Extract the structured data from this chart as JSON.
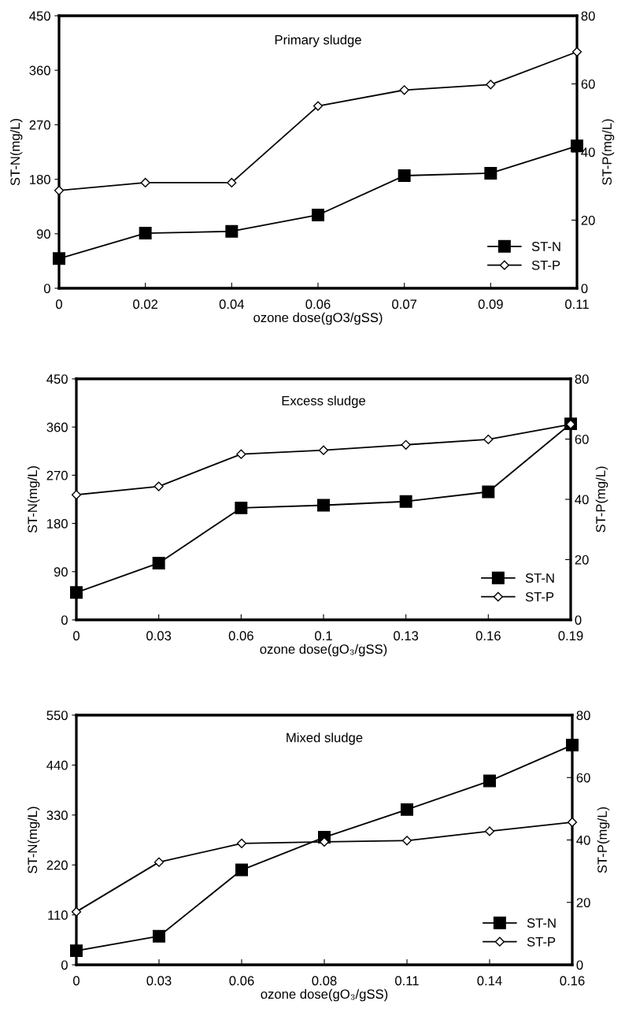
{
  "chart_data": [
    {
      "type": "line",
      "title": "Primary sludge",
      "xlabel": "ozone dose(gO3/gSS)",
      "ylabel": "ST-N(mg/L)",
      "y2label": "ST-P(mg/L)",
      "categories": [
        "0",
        "0.02",
        "0.04",
        "0.06",
        "0.07",
        "0.09",
        "0.11"
      ],
      "series": [
        {
          "name": "ST-N",
          "color": "#000000",
          "marker": "square",
          "values": [
            49,
            91,
            94,
            121,
            186,
            190,
            235
          ]
        },
        {
          "name": "ST-P",
          "color": "#000000",
          "marker": "diamond",
          "axis": "y2",
          "values": [
            28.7,
            31.0,
            31.0,
            53.5,
            58.2,
            59.8,
            69.4
          ]
        }
      ],
      "ylim": [
        0,
        450
      ],
      "yticks": [
        0,
        90,
        180,
        270,
        360,
        450
      ],
      "y2lim": [
        0,
        80
      ],
      "y2ticks": [
        0,
        20,
        40,
        60,
        80
      ],
      "legend": "bottom right",
      "grid": false,
      "line_style": "solid"
    },
    {
      "type": "line",
      "title": "Excess sludge",
      "xlabel": "ozone dose(gO₃/gSS)",
      "ylabel": "ST-N(mg/L)",
      "y2label": "ST-P(mg/L)",
      "categories": [
        "0",
        "0.03",
        "0.06",
        "0.1",
        "0.13",
        "0.16",
        "0.19"
      ],
      "series": [
        {
          "name": "ST-N",
          "color": "#000000",
          "marker": "square",
          "values": [
            51,
            106,
            209,
            214,
            221,
            239,
            366
          ]
        },
        {
          "name": "ST-P",
          "color": "#000000",
          "marker": "diamond",
          "axis": "y2",
          "values": [
            41.5,
            44.3,
            55.0,
            56.3,
            58.1,
            59.9,
            64.9
          ]
        }
      ],
      "ylim": [
        0,
        450
      ],
      "yticks": [
        0,
        90,
        180,
        270,
        360,
        450
      ],
      "y2lim": [
        0,
        80
      ],
      "y2ticks": [
        0,
        20,
        40,
        60,
        80
      ],
      "legend": "bottom right",
      "grid": false,
      "line_style": "solid"
    },
    {
      "type": "line",
      "title": "Mixed sludge",
      "xlabel": "ozone dose(gO₃/gSS)",
      "ylabel": "ST-N(mg/L)",
      "y2label": "ST-P(mg/L)",
      "categories": [
        "0",
        "0.03",
        "0.06",
        "0.08",
        "0.11",
        "0.14",
        "0.16"
      ],
      "series": [
        {
          "name": "ST-N",
          "color": "#000000",
          "marker": "square",
          "values": [
            31,
            63,
            209,
            281,
            342,
            405,
            484
          ]
        },
        {
          "name": "ST-P",
          "color": "#000000",
          "marker": "diamond",
          "axis": "y2",
          "values": [
            17.0,
            32.9,
            38.9,
            39.4,
            39.8,
            42.8,
            45.7
          ]
        }
      ],
      "ylim": [
        0,
        550
      ],
      "yticks": [
        0,
        110,
        220,
        330,
        440,
        550
      ],
      "y2lim": [
        0,
        80
      ],
      "y2ticks": [
        0,
        20,
        40,
        60,
        80
      ],
      "legend": "bottom right",
      "grid": false,
      "line_style": "solid"
    }
  ]
}
